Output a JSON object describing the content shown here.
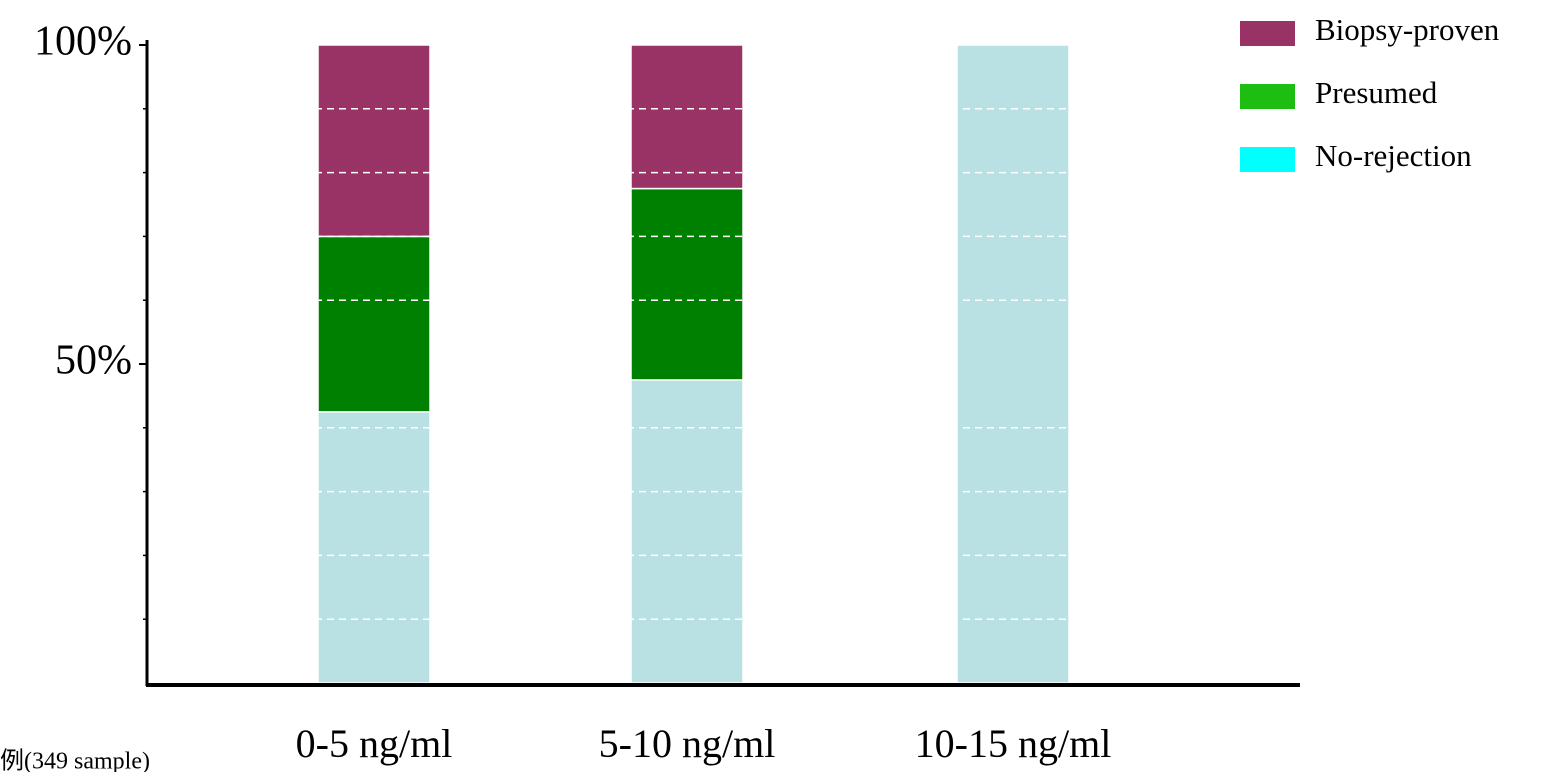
{
  "chart_data": {
    "type": "stacked_bar",
    "categories": [
      "0-5 ng/ml",
      "5-10 ng/ml",
      "10-15 ng/ml"
    ],
    "series": [
      {
        "name": "No-rejection",
        "color": "#b9e0e3",
        "legend_color": "#00ffff",
        "values": [
          42.5,
          47.5,
          100
        ]
      },
      {
        "name": "Presumed",
        "color": "#008000",
        "legend_color": "#1ebd12",
        "values": [
          27.5,
          30,
          0
        ]
      },
      {
        "name": "Biopsy-proven",
        "color": "#993366",
        "legend_color": "#993366",
        "values": [
          30,
          22.5,
          0
        ]
      }
    ],
    "ylim": [
      0,
      100
    ],
    "yticks": [
      {
        "value": 50,
        "label": "50%"
      },
      {
        "value": 100,
        "label": "100%"
      }
    ],
    "minor_ticks": [
      10,
      20,
      30,
      40,
      60,
      70,
      80,
      90
    ],
    "grid": true,
    "legend": "top-right",
    "annotation": "例(349 sample)"
  }
}
